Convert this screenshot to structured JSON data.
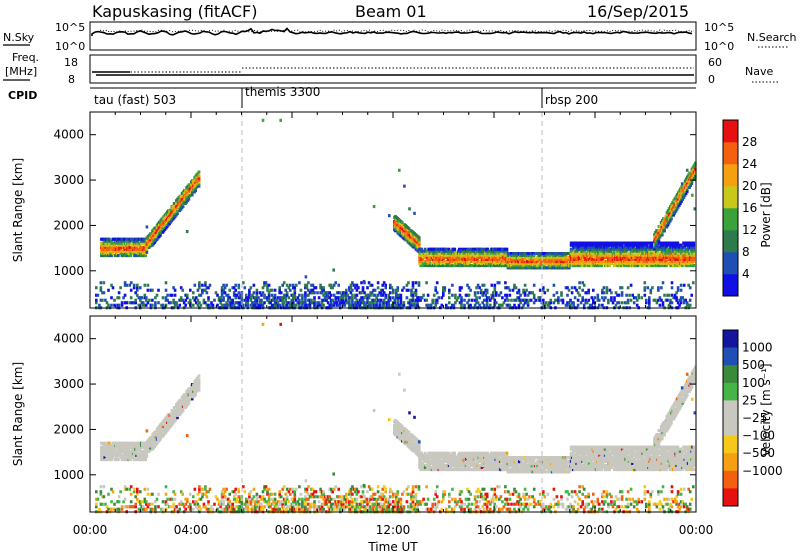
{
  "header": {
    "station": "Kapuskasing (fitACF)",
    "beam": "Beam 01",
    "date": "16/Sep/2015"
  },
  "noise_panel": {
    "left_label": "N.Sky",
    "right_label": "N.Search",
    "left_ticks": [
      "10^5",
      "10^0"
    ],
    "right_ticks": [
      "10^5",
      "10^0"
    ]
  },
  "freq_panel": {
    "left_label_top": "Freq.",
    "left_label_bottom": "[MHz]",
    "left_ticks": [
      "18",
      "8"
    ],
    "right_label": "Nave",
    "right_ticks": [
      "60",
      "0"
    ]
  },
  "cpid": {
    "label": "CPID",
    "modes": [
      {
        "name": "tau (fast) 503",
        "start_hour": 0
      },
      {
        "name": "themis 3300",
        "start_hour": 6
      },
      {
        "name": "rbsp 200",
        "start_hour": 18
      }
    ]
  },
  "colors": {
    "mode_separator": "#bdbdbd",
    "power": [
      "#1010e6",
      "#1f4fb4",
      "#2d7a4a",
      "#3aa23a",
      "#c8c81a",
      "#f5a010",
      "#f56010",
      "#e61010"
    ],
    "velocity": [
      "#e61010",
      "#f56010",
      "#f5a010",
      "#f5c81a",
      "#c8c8c0",
      "#c8c8c0",
      "#46b446",
      "#3a8a3a",
      "#1f4fb4",
      "#1414a0"
    ]
  },
  "chart_data": [
    {
      "type": "heatmap",
      "name": "power",
      "ylabel": "Slant Range [km]",
      "xlabel": "",
      "x_tick_labels": [
        "00:00",
        "04:00",
        "08:00",
        "12:00",
        "16:00",
        "20:00",
        "00:00"
      ],
      "xlim": [
        0,
        24
      ],
      "ylim": [
        180,
        4500
      ],
      "yticks": [
        1000,
        2000,
        3000,
        4000
      ],
      "colorbar_label": "Power [dB]",
      "colorbar_ticks": [
        "4",
        "8",
        "12",
        "16",
        "20",
        "24",
        "28"
      ],
      "bands": [
        {
          "t0": 0.4,
          "t1": 2.2,
          "r0": 1370,
          "r1": 1760,
          "core": 1530,
          "shape": "flat"
        },
        {
          "t0": 2.2,
          "t1": 4.3,
          "r0": 1620,
          "r1": 3100,
          "shape": "rising"
        },
        {
          "t0": 12.0,
          "t1": 13.0,
          "r0": 1600,
          "r1": 2100,
          "shape": "falling"
        },
        {
          "t0": 13.0,
          "t1": 16.5,
          "r0": 1150,
          "r1": 1550,
          "core": 1300,
          "shape": "flat"
        },
        {
          "t0": 16.5,
          "t1": 19.0,
          "r0": 1100,
          "r1": 1450,
          "core": 1250,
          "shape": "flat"
        },
        {
          "t0": 19.0,
          "t1": 23.9,
          "r0": 1150,
          "r1": 1650,
          "core": 1300,
          "shape": "flat"
        },
        {
          "t0": 22.3,
          "t1": 23.95,
          "r0": 1700,
          "r1": 3300,
          "shape": "rising"
        }
      ]
    },
    {
      "type": "heatmap",
      "name": "velocity",
      "ylabel": "Slant Range [km]",
      "xlabel": "Time UT",
      "x_tick_labels": [
        "00:00",
        "04:00",
        "08:00",
        "12:00",
        "16:00",
        "20:00",
        "00:00"
      ],
      "xlim": [
        0,
        24
      ],
      "ylim": [
        180,
        4500
      ],
      "yticks": [
        1000,
        2000,
        3000,
        4000
      ],
      "colorbar_label": "Velocity [m s⁻¹]",
      "colorbar_ticks": [
        "1000",
        "500",
        "100",
        "25",
        "−25",
        "−100",
        "−500",
        "−1000"
      ]
    }
  ]
}
